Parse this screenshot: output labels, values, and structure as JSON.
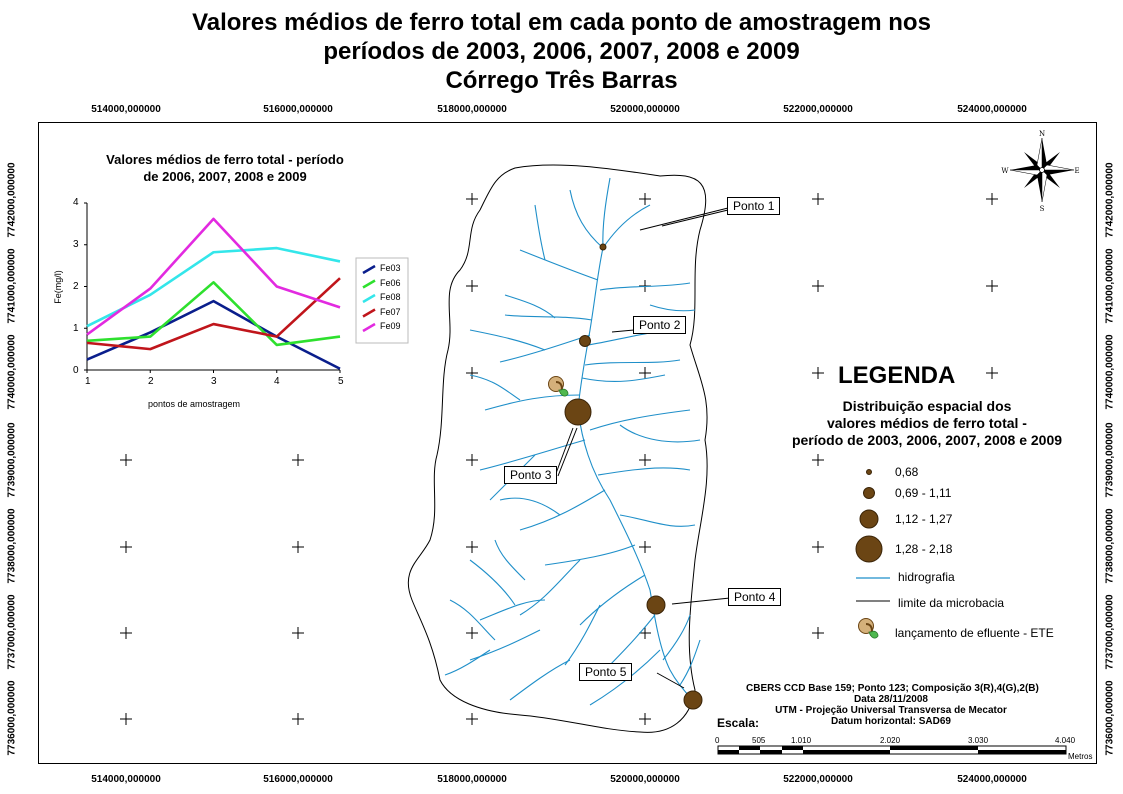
{
  "title": {
    "line1": "Valores médios de ferro total em cada ponto de amostragem nos",
    "line2": "períodos de 2003, 2006, 2007, 2008 e 2009",
    "line3": "Córrego Três Barras"
  },
  "coords": {
    "x": [
      "514000,000000",
      "516000,000000",
      "518000,000000",
      "520000,000000",
      "522000,000000",
      "524000,000000"
    ],
    "y": [
      "7742000,000000",
      "7741000,000000",
      "7740000,000000",
      "7739000,000000",
      "7738000,000000",
      "7737000,000000",
      "7736000,000000"
    ]
  },
  "points": [
    {
      "label": "Ponto 1",
      "class": "0,68"
    },
    {
      "label": "Ponto 2",
      "class": "0,69 - 1,11"
    },
    {
      "label": "Ponto 3",
      "class": "1,28 - 2,18"
    },
    {
      "label": "Ponto 4",
      "class": "1,12 - 1,27"
    },
    {
      "label": "Ponto 5",
      "class": "1,12 - 1,27"
    }
  ],
  "compass": {
    "n": "N",
    "s": "S",
    "e": "E",
    "w": "W",
    "icon": "compass-rose-icon"
  },
  "legend": {
    "title": "LEGENDA",
    "subtitle1": "Distribuição espacial dos",
    "subtitle2": "valores médios de ferro total -",
    "subtitle3": "período de 2003, 2006, 2007, 2008 e 2009",
    "classes": [
      "0,68",
      "0,69 - 1,11",
      "1,12 - 1,27",
      "1,28 - 2,18"
    ],
    "hidrografia": "hidrografia",
    "limite": "limite da microbacia",
    "lancamento": "lançamento de efluente - ETE",
    "colors": {
      "point": "#6b4514",
      "river": "#1f8fc9",
      "boundary": "#000000"
    }
  },
  "meta": {
    "line1": "CBERS CCD Base 159; Ponto 123; Composição 3(R),4(G),2(B)",
    "line2": "Data 28/11/2008",
    "line3": "UTM - Projeção Universal Transversa de Mecator",
    "line4": "Datum horizontal: SAD69"
  },
  "scale": {
    "label": "Escala:",
    "ticks": [
      "0",
      "505",
      "1.010",
      "2.020",
      "3.030",
      "4.040"
    ],
    "unit": "Metros"
  },
  "chart_data": {
    "type": "line",
    "title_line1": "Valores médios de ferro total - período",
    "title_line2": "de 2006, 2007, 2008 e 2009",
    "xlabel": "pontos de amostragem",
    "ylabel": "Fe(mg/l)",
    "x": [
      1,
      2,
      3,
      4,
      5
    ],
    "ylim": [
      0,
      4
    ],
    "yticks": [
      0,
      1,
      2,
      3,
      4
    ],
    "series": [
      {
        "name": "Fe03",
        "color": "#0a1e8c",
        "values": [
          0.25,
          0.9,
          1.65,
          0.8,
          0.03
        ]
      },
      {
        "name": "Fe06",
        "color": "#2ee02e",
        "values": [
          0.7,
          0.8,
          2.1,
          0.6,
          0.8
        ]
      },
      {
        "name": "Fe08",
        "color": "#33e6ea",
        "values": [
          1.05,
          1.8,
          2.82,
          2.92,
          2.6
        ]
      },
      {
        "name": "Fe07",
        "color": "#c0151b",
        "values": [
          0.65,
          0.5,
          1.1,
          0.8,
          2.2
        ]
      },
      {
        "name": "Fe09",
        "color": "#e22ae0",
        "values": [
          0.85,
          1.95,
          3.62,
          2.0,
          1.5
        ]
      }
    ]
  }
}
